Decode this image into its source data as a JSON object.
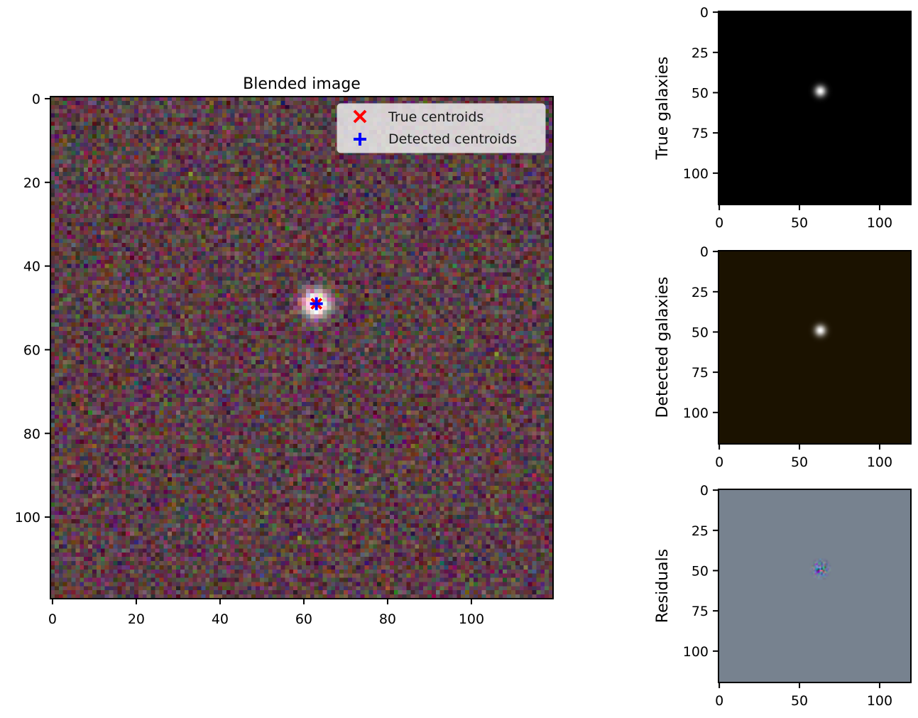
{
  "chart_data": [
    {
      "type": "heatmap",
      "title": "Blended image",
      "xlabel": "",
      "ylabel": "",
      "xlim": [
        -0.5,
        119.5
      ],
      "ylim": [
        119.5,
        -0.5
      ],
      "xticks": [
        0,
        20,
        40,
        60,
        80,
        100
      ],
      "yticks": [
        0,
        20,
        40,
        60,
        80,
        100
      ],
      "image": {
        "size": 120,
        "background": "noisy-rgb",
        "source_center": [
          63,
          49
        ],
        "source_sigma": 2.2
      },
      "points": [
        {
          "name": "True centroids",
          "x": 63,
          "y": 49,
          "marker": "x",
          "color": "#ff0000"
        },
        {
          "name": "Detected centroids",
          "x": 63,
          "y": 49,
          "marker": "+",
          "color": "#0000ff"
        }
      ],
      "legend": {
        "position": "upper right",
        "entries": [
          "True centroids",
          "Detected centroids"
        ]
      }
    },
    {
      "type": "heatmap",
      "title": "",
      "ylabel": "True galaxies",
      "xticks": [
        0,
        50,
        100
      ],
      "yticks": [
        0,
        25,
        50,
        75,
        100
      ],
      "image": {
        "size": 120,
        "background": "#000000",
        "source_center": [
          63,
          49
        ],
        "source_sigma": 2.4,
        "source_color": "#ffffff"
      }
    },
    {
      "type": "heatmap",
      "title": "",
      "ylabel": "Detected galaxies",
      "xticks": [
        0,
        50,
        100
      ],
      "yticks": [
        0,
        25,
        50,
        75,
        100
      ],
      "image": {
        "size": 120,
        "background": "#1b1200",
        "source_center": [
          63,
          49
        ],
        "source_sigma": 2.4,
        "source_color": "#ffffff"
      }
    },
    {
      "type": "heatmap",
      "title": "",
      "ylabel": "Residuals",
      "xticks": [
        0,
        50,
        100
      ],
      "yticks": [
        0,
        25,
        50,
        75,
        100
      ],
      "image": {
        "size": 120,
        "background": "#77828f",
        "source_center": [
          63,
          49
        ],
        "source_sigma": 3.0,
        "source_color": "residual-noise"
      }
    }
  ]
}
